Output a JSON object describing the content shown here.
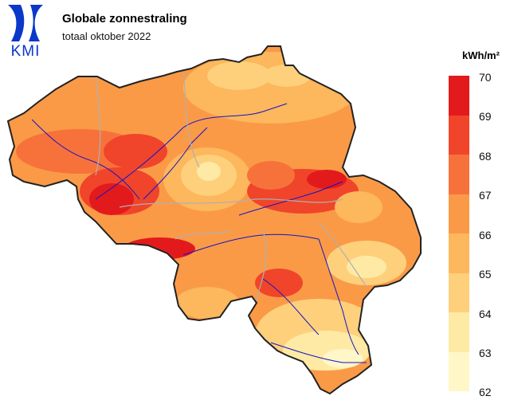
{
  "header": {
    "logo_text": "KMI",
    "title": "Globale zonnestraling",
    "subtitle": "totaal oktober 2022"
  },
  "legend": {
    "unit": "kWh/m²",
    "ticks": [
      "70",
      "69",
      "68",
      "67",
      "66",
      "65",
      "64",
      "63",
      "62"
    ],
    "colors": [
      "#e31a1c",
      "#f0452a",
      "#f7723a",
      "#fa9a47",
      "#fdb75c",
      "#fed07c",
      "#feeaa5",
      "#fff7c8"
    ]
  },
  "map": {
    "region": "België",
    "variable": "globale zonnestraling",
    "value_range": [
      62,
      70
    ]
  }
}
